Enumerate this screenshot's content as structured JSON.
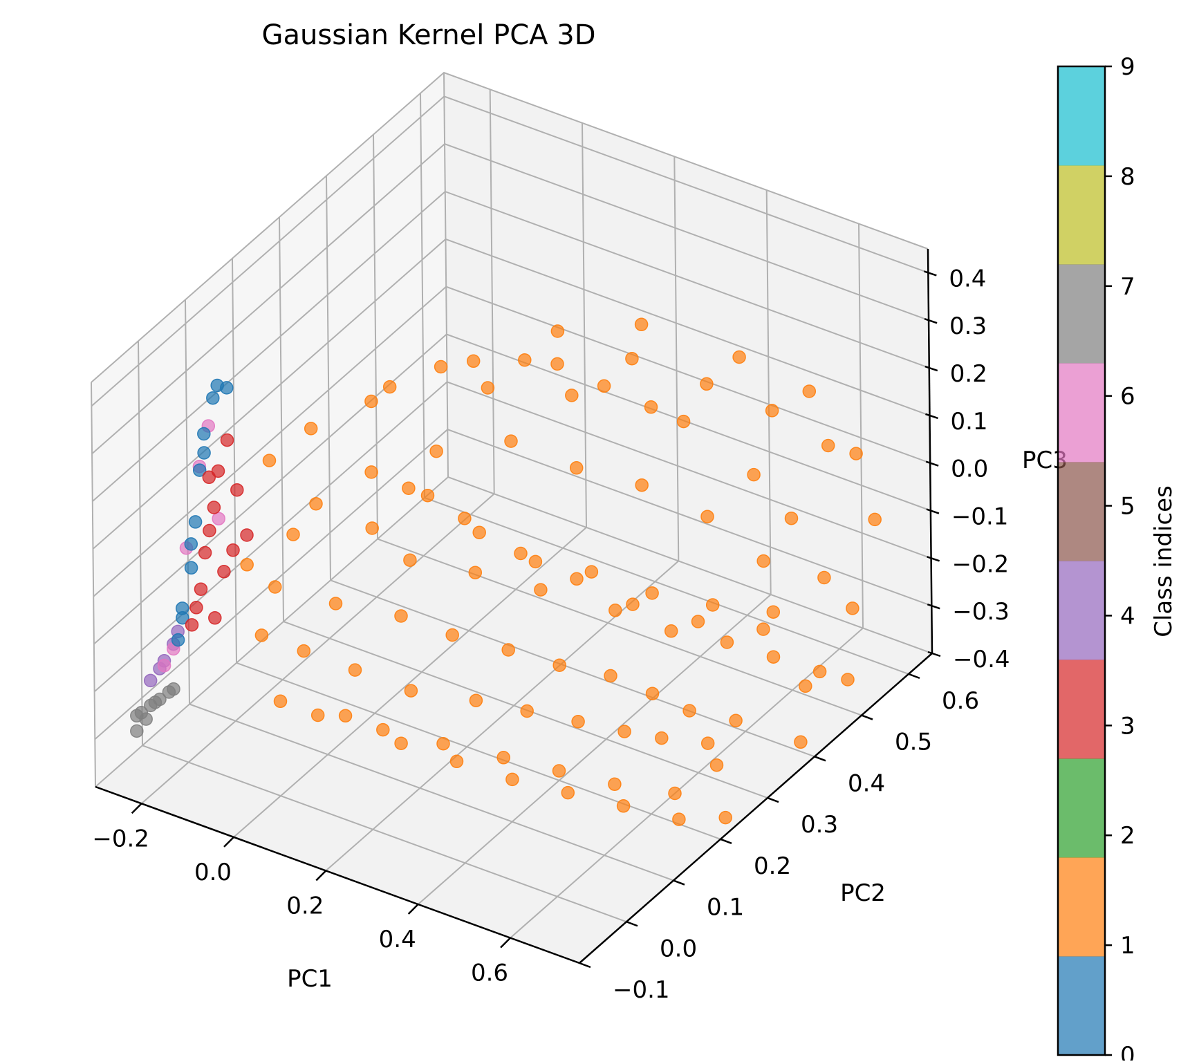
{
  "chart_data": {
    "type": "scatter",
    "projection": "3d",
    "title": "Gaussian Kernel PCA 3D",
    "xlabel": "PC1",
    "ylabel": "PC2",
    "zlabel": "PC3",
    "xlim": [
      -0.3,
      0.75
    ],
    "ylim": [
      -0.1,
      0.65
    ],
    "zlim": [
      -0.4,
      0.45
    ],
    "x_ticks": [
      "−0.2",
      "0.0",
      "0.2",
      "0.4",
      "0.6"
    ],
    "y_ticks": [
      "−0.1",
      "0.0",
      "0.1",
      "0.2",
      "0.3",
      "0.4",
      "0.5",
      "0.6"
    ],
    "z_ticks": [
      "−0.4",
      "−0.3",
      "−0.2",
      "−0.1",
      "0.0",
      "0.1",
      "0.2",
      "0.3",
      "0.4"
    ],
    "grid": true,
    "colormap": "tab10",
    "point_alpha": 0.7,
    "colorbar": {
      "label": "Class indices",
      "ticks": [
        "0",
        "1",
        "2",
        "3",
        "4",
        "5",
        "6",
        "7",
        "8",
        "9"
      ],
      "colors": [
        "#1f77b4",
        "#ff7f0e",
        "#2ca02c",
        "#d62728",
        "#9467bd",
        "#8c564b",
        "#e377c2",
        "#7f7f7f",
        "#bcbd22",
        "#17becf"
      ]
    },
    "series": [
      {
        "class": 7,
        "color": "#7f7f7f",
        "points": [
          [
            -0.26,
            -0.05,
            -0.28
          ],
          [
            -0.25,
            -0.05,
            -0.27
          ],
          [
            -0.24,
            -0.04,
            -0.26
          ],
          [
            -0.24,
            -0.05,
            -0.28
          ],
          [
            -0.23,
            -0.04,
            -0.25
          ],
          [
            -0.22,
            -0.04,
            -0.24
          ],
          [
            -0.21,
            -0.03,
            -0.23
          ],
          [
            -0.25,
            -0.06,
            -0.3
          ],
          [
            -0.2,
            -0.03,
            -0.22
          ]
        ]
      },
      {
        "class": 4,
        "color": "#9467bd",
        "points": [
          [
            -0.24,
            -0.02,
            -0.2
          ],
          [
            -0.23,
            -0.02,
            -0.18
          ],
          [
            -0.22,
            -0.01,
            -0.15
          ],
          [
            -0.25,
            -0.03,
            -0.22
          ],
          [
            -0.21,
            -0.01,
            -0.12
          ]
        ]
      },
      {
        "class": 6,
        "color": "#e377c2",
        "points": [
          [
            -0.23,
            -0.02,
            -0.19
          ],
          [
            -0.22,
            -0.01,
            -0.16
          ],
          [
            -0.18,
            0.01,
            0.22
          ],
          [
            -0.17,
            0.02,
            0.3
          ],
          [
            -0.2,
            0.0,
            0.05
          ],
          [
            -0.16,
            0.03,
            0.1
          ]
        ]
      },
      {
        "class": 0,
        "color": "#1f77b4",
        "points": [
          [
            -0.22,
            0.0,
            -0.15
          ],
          [
            -0.21,
            0.0,
            -0.08
          ],
          [
            -0.2,
            0.01,
            0.0
          ],
          [
            -0.19,
            0.01,
            0.1
          ],
          [
            -0.19,
            0.02,
            0.2
          ],
          [
            -0.18,
            0.02,
            0.28
          ],
          [
            -0.17,
            0.03,
            0.35
          ],
          [
            -0.16,
            0.03,
            0.38
          ],
          [
            -0.15,
            0.04,
            0.37
          ],
          [
            -0.21,
            0.0,
            -0.1
          ],
          [
            -0.2,
            0.01,
            0.05
          ],
          [
            -0.18,
            0.02,
            0.24
          ]
        ]
      },
      {
        "class": 3,
        "color": "#d62728",
        "points": [
          [
            -0.2,
            0.01,
            -0.12
          ],
          [
            -0.19,
            0.02,
            -0.05
          ],
          [
            -0.18,
            0.02,
            0.03
          ],
          [
            -0.17,
            0.03,
            0.12
          ],
          [
            -0.16,
            0.03,
            0.2
          ],
          [
            -0.15,
            0.04,
            0.26
          ],
          [
            -0.17,
            0.02,
            0.08
          ],
          [
            -0.16,
            0.04,
            -0.02
          ],
          [
            -0.14,
            0.05,
            0.15
          ],
          [
            -0.19,
            0.01,
            -0.08
          ],
          [
            -0.18,
            0.03,
            0.18
          ],
          [
            -0.15,
            0.05,
            0.02
          ],
          [
            -0.13,
            0.06,
            0.05
          ],
          [
            -0.16,
            0.02,
            -0.1
          ]
        ]
      },
      {
        "class": 1,
        "color": "#ff7f0e",
        "points": [
          [
            -0.1,
            0.08,
            0.2
          ],
          [
            -0.05,
            0.12,
            0.25
          ],
          [
            0.02,
            0.18,
            0.28
          ],
          [
            0.1,
            0.25,
            0.32
          ],
          [
            0.2,
            0.33,
            0.3
          ],
          [
            0.3,
            0.4,
            0.22
          ],
          [
            0.4,
            0.47,
            0.12
          ],
          [
            0.5,
            0.52,
            0.0
          ],
          [
            0.55,
            0.55,
            -0.1
          ],
          [
            -0.08,
            0.07,
            -0.05
          ],
          [
            0.0,
            0.12,
            -0.1
          ],
          [
            0.08,
            0.18,
            -0.15
          ],
          [
            0.15,
            0.22,
            -0.2
          ],
          [
            0.22,
            0.27,
            -0.25
          ],
          [
            0.3,
            0.3,
            -0.28
          ],
          [
            0.38,
            0.33,
            -0.3
          ],
          [
            0.45,
            0.35,
            -0.33
          ],
          [
            0.52,
            0.36,
            -0.35
          ],
          [
            0.6,
            0.38,
            -0.36
          ],
          [
            0.05,
            0.15,
            0.05
          ],
          [
            0.12,
            0.2,
            0.1
          ],
          [
            0.18,
            0.25,
            0.0
          ],
          [
            0.25,
            0.3,
            -0.08
          ],
          [
            0.32,
            0.35,
            -0.12
          ],
          [
            0.4,
            0.4,
            -0.18
          ],
          [
            0.48,
            0.45,
            -0.22
          ],
          [
            0.56,
            0.5,
            -0.25
          ],
          [
            -0.12,
            0.05,
            0.0
          ],
          [
            -0.1,
            0.06,
            -0.15
          ],
          [
            -0.05,
            0.1,
            -0.2
          ],
          [
            0.02,
            0.14,
            -0.25
          ],
          [
            0.1,
            0.18,
            -0.3
          ],
          [
            0.2,
            0.22,
            -0.32
          ],
          [
            0.28,
            0.25,
            -0.34
          ],
          [
            0.36,
            0.28,
            -0.36
          ],
          [
            0.44,
            0.3,
            -0.37
          ],
          [
            0.5,
            0.32,
            -0.38
          ],
          [
            0.58,
            0.34,
            -0.38
          ],
          [
            -0.02,
            0.1,
            0.12
          ],
          [
            0.06,
            0.14,
            0.18
          ],
          [
            0.14,
            0.2,
            0.2
          ],
          [
            0.22,
            0.28,
            0.18
          ],
          [
            0.3,
            0.34,
            0.1
          ],
          [
            0.38,
            0.4,
            0.04
          ],
          [
            0.46,
            0.46,
            -0.05
          ],
          [
            0.54,
            0.5,
            -0.15
          ],
          [
            0.62,
            0.55,
            -0.2
          ],
          [
            0.65,
            0.58,
            -0.28
          ],
          [
            0.15,
            0.3,
            0.25
          ],
          [
            0.25,
            0.38,
            0.2
          ],
          [
            0.35,
            0.45,
            0.15
          ],
          [
            0.0,
            0.08,
            -0.3
          ],
          [
            0.1,
            0.12,
            -0.33
          ],
          [
            0.2,
            0.15,
            -0.35
          ],
          [
            0.3,
            0.18,
            -0.37
          ],
          [
            0.4,
            0.2,
            -0.38
          ],
          [
            0.5,
            0.22,
            -0.39
          ],
          [
            0.6,
            0.25,
            -0.4
          ],
          [
            -0.06,
            0.09,
            0.05
          ],
          [
            0.08,
            0.2,
            -0.05
          ],
          [
            0.16,
            0.26,
            -0.1
          ],
          [
            0.24,
            0.32,
            -0.16
          ],
          [
            0.34,
            0.38,
            -0.22
          ],
          [
            0.42,
            0.42,
            -0.27
          ],
          [
            0.5,
            0.46,
            -0.3
          ],
          [
            0.58,
            0.48,
            -0.32
          ],
          [
            0.66,
            0.5,
            -0.34
          ],
          [
            0.7,
            0.52,
            -0.36
          ],
          [
            0.12,
            0.16,
            0.15
          ],
          [
            0.2,
            0.2,
            0.08
          ],
          [
            0.28,
            0.24,
            0.0
          ],
          [
            0.36,
            0.28,
            -0.06
          ],
          [
            0.44,
            0.32,
            -0.12
          ],
          [
            0.52,
            0.38,
            -0.18
          ],
          [
            0.6,
            0.44,
            -0.22
          ],
          [
            0.04,
            0.2,
            0.3
          ],
          [
            0.14,
            0.28,
            0.32
          ],
          [
            0.24,
            0.36,
            0.28
          ],
          [
            0.32,
            0.44,
            0.25
          ],
          [
            0.42,
            0.5,
            0.18
          ],
          [
            0.5,
            0.56,
            0.1
          ],
          [
            0.58,
            0.6,
            0.02
          ],
          [
            0.68,
            0.6,
            -0.1
          ],
          [
            -0.04,
            0.04,
            -0.25
          ],
          [
            0.06,
            0.08,
            -0.28
          ],
          [
            0.16,
            0.1,
            -0.32
          ],
          [
            0.26,
            0.12,
            -0.34
          ],
          [
            0.36,
            0.14,
            -0.36
          ],
          [
            0.46,
            0.16,
            -0.37
          ],
          [
            0.56,
            0.18,
            -0.38
          ],
          [
            0.66,
            0.2,
            -0.39
          ],
          [
            0.72,
            0.24,
            -0.4
          ],
          [
            0.72,
            0.4,
            -0.38
          ],
          [
            0.68,
            0.45,
            -0.32
          ],
          [
            0.64,
            0.3,
            -0.37
          ],
          [
            0.2,
            0.4,
            0.3
          ],
          [
            0.3,
            0.48,
            0.28
          ],
          [
            0.44,
            0.55,
            0.2
          ],
          [
            0.54,
            0.6,
            0.12
          ],
          [
            0.62,
            0.62,
            0.0
          ]
        ]
      }
    ]
  }
}
